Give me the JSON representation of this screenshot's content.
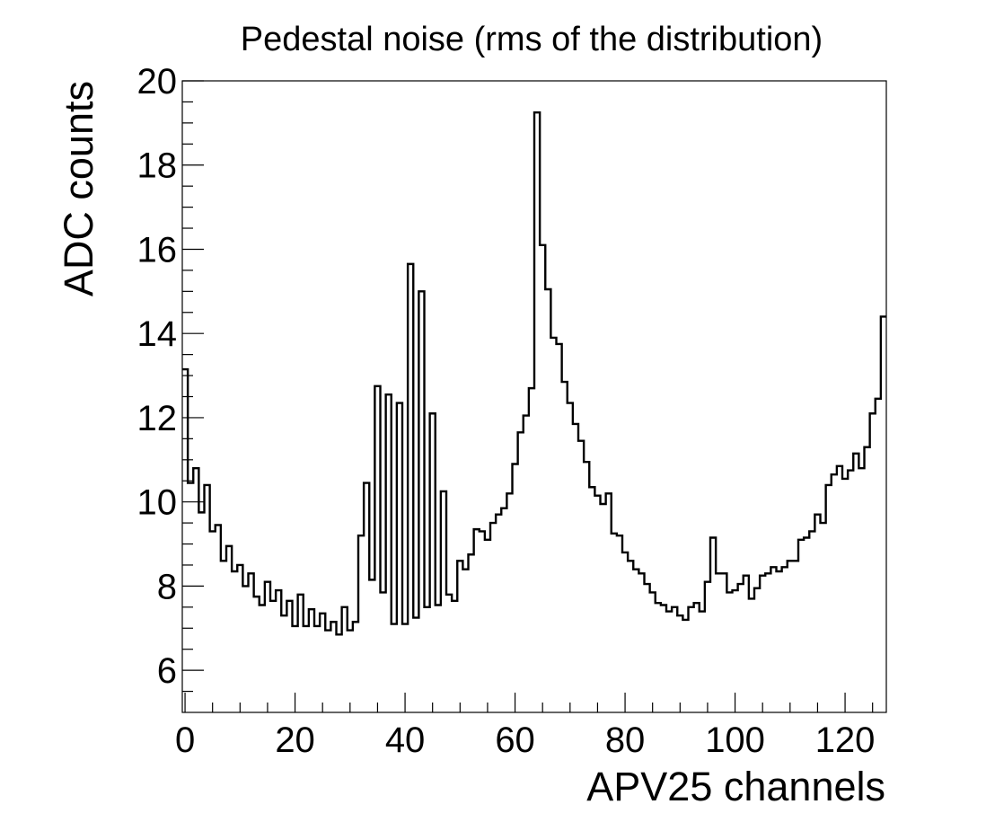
{
  "chart_data": {
    "type": "histogram-step",
    "title": "Pedestal noise (rms of the distribution)",
    "xlabel": "APV25 channels",
    "ylabel": "ADC counts",
    "xlim": [
      -0.5,
      127.5
    ],
    "ylim": [
      5,
      20
    ],
    "x_ticks": [
      0,
      20,
      40,
      60,
      80,
      100,
      120
    ],
    "y_ticks": [
      6,
      8,
      10,
      12,
      14,
      16,
      18,
      20
    ],
    "x_tick_labels": [
      "0",
      "20",
      "40",
      "60",
      "80",
      "100",
      "120"
    ],
    "y_tick_labels": [
      "6",
      "8",
      "10",
      "12",
      "14",
      "16",
      "18",
      "20"
    ],
    "x_minor_step": 5,
    "y_minor_step": 0.5,
    "grid": false,
    "line_color": "#000000",
    "bin_width": 1,
    "bins": [
      0,
      1,
      2,
      3,
      4,
      5,
      6,
      7,
      8,
      9,
      10,
      11,
      12,
      13,
      14,
      15,
      16,
      17,
      18,
      19,
      20,
      21,
      22,
      23,
      24,
      25,
      26,
      27,
      28,
      29,
      30,
      31,
      32,
      33,
      34,
      35,
      36,
      37,
      38,
      39,
      40,
      41,
      42,
      43,
      44,
      45,
      46,
      47,
      48,
      49,
      50,
      51,
      52,
      53,
      54,
      55,
      56,
      57,
      58,
      59,
      60,
      61,
      62,
      63,
      64,
      65,
      66,
      67,
      68,
      69,
      70,
      71,
      72,
      73,
      74,
      75,
      76,
      77,
      78,
      79,
      80,
      81,
      82,
      83,
      84,
      85,
      86,
      87,
      88,
      89,
      90,
      91,
      92,
      93,
      94,
      95,
      96,
      97,
      98,
      99,
      100,
      101,
      102,
      103,
      104,
      105,
      106,
      107,
      108,
      109,
      110,
      111,
      112,
      113,
      114,
      115,
      116,
      117,
      118,
      119,
      120,
      121,
      122,
      123,
      124,
      125,
      126,
      127
    ],
    "values": [
      13.15,
      10.45,
      10.8,
      9.75,
      10.4,
      9.3,
      9.45,
      8.6,
      8.95,
      8.35,
      8.5,
      8.0,
      8.3,
      7.75,
      7.55,
      8.1,
      7.65,
      7.9,
      7.3,
      7.65,
      7.05,
      7.8,
      7.05,
      7.45,
      7.05,
      7.35,
      6.95,
      7.15,
      6.85,
      7.5,
      6.95,
      7.15,
      9.2,
      10.45,
      8.15,
      12.75,
      7.85,
      12.55,
      7.1,
      12.35,
      7.1,
      15.65,
      7.25,
      15.0,
      7.5,
      12.1,
      7.55,
      10.25,
      7.8,
      7.65,
      8.6,
      8.4,
      8.75,
      9.35,
      9.3,
      9.1,
      9.5,
      9.7,
      9.85,
      10.2,
      10.9,
      11.65,
      12.05,
      12.7,
      19.25,
      16.1,
      15.05,
      13.9,
      13.75,
      12.85,
      12.35,
      11.85,
      11.45,
      10.95,
      10.35,
      10.15,
      9.95,
      10.2,
      9.25,
      9.2,
      8.8,
      8.6,
      8.4,
      8.3,
      8.05,
      7.85,
      7.6,
      7.55,
      7.4,
      7.5,
      7.3,
      7.2,
      7.5,
      7.6,
      7.4,
      8.1,
      9.15,
      8.3,
      8.3,
      7.85,
      7.9,
      8.05,
      8.25,
      7.7,
      7.95,
      8.25,
      8.3,
      8.45,
      8.35,
      8.45,
      8.6,
      8.6,
      9.1,
      9.15,
      9.3,
      9.7,
      9.5,
      10.4,
      10.65,
      10.85,
      10.55,
      10.75,
      11.15,
      10.8,
      11.3,
      12.1,
      12.45,
      14.4
    ]
  }
}
